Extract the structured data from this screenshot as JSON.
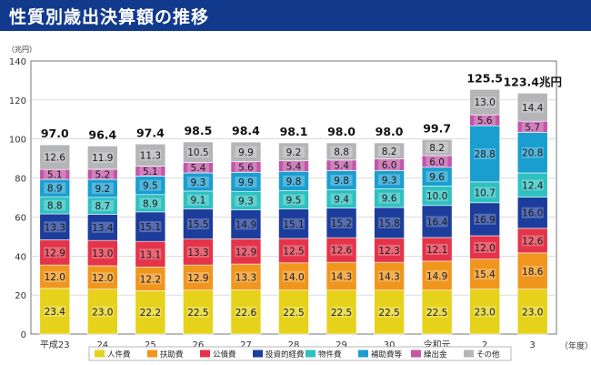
{
  "header": {
    "title": "性質別歳出決算額の推移"
  },
  "chart_data": {
    "type": "bar",
    "stacked": true,
    "title": "性質別歳出決算額の推移",
    "ylabel": "（兆円）",
    "xlabel": "（年度）",
    "ylim": [
      0,
      140
    ],
    "yticks": [
      0,
      20,
      40,
      60,
      80,
      100,
      120,
      140
    ],
    "categories": [
      "平成23",
      "24",
      "25",
      "26",
      "27",
      "28",
      "29",
      "30",
      "令和元",
      "2",
      "3"
    ],
    "series": [
      {
        "name": "人件費",
        "color": "#e6d21a",
        "values": [
          23.4,
          23.0,
          22.2,
          22.5,
          22.6,
          22.5,
          22.5,
          22.5,
          22.5,
          23.0,
          23.0
        ]
      },
      {
        "name": "扶助費",
        "color": "#f0961e",
        "values": [
          12.0,
          12.0,
          12.2,
          12.9,
          13.3,
          14.0,
          14.3,
          14.3,
          14.9,
          15.4,
          18.6
        ]
      },
      {
        "name": "公債費",
        "color": "#e5344a",
        "values": [
          12.9,
          13.0,
          13.1,
          13.3,
          12.9,
          12.5,
          12.6,
          12.3,
          12.1,
          12.0,
          12.6
        ]
      },
      {
        "name": "投資的経費",
        "color": "#1d3d9c",
        "values": [
          13.3,
          13.4,
          15.1,
          15.5,
          14.9,
          15.1,
          15.2,
          15.8,
          16.4,
          16.9,
          16.0
        ]
      },
      {
        "name": "物件費",
        "color": "#2ec1c0",
        "values": [
          8.8,
          8.7,
          8.9,
          9.1,
          9.3,
          9.5,
          9.4,
          9.6,
          10.0,
          10.7,
          12.4
        ]
      },
      {
        "name": "補助費等",
        "color": "#1a9ed0",
        "values": [
          8.9,
          9.2,
          9.5,
          9.3,
          9.9,
          9.8,
          9.8,
          9.3,
          9.6,
          28.8,
          20.8
        ]
      },
      {
        "name": "繰出金",
        "color": "#c256a8",
        "values": [
          5.1,
          5.2,
          5.1,
          5.4,
          5.6,
          5.4,
          5.4,
          6.0,
          6.0,
          5.6,
          5.7
        ]
      },
      {
        "name": "その他",
        "color": "#b4b5b7",
        "values": [
          12.6,
          11.9,
          11.3,
          10.5,
          9.9,
          9.2,
          8.8,
          8.2,
          8.2,
          13.0,
          14.4
        ]
      }
    ],
    "totals": [
      "97.0",
      "96.4",
      "97.4",
      "98.5",
      "98.4",
      "98.1",
      "98.0",
      "98.0",
      "99.7",
      "125.5",
      "123.4兆円"
    ],
    "legend_position": "bottom"
  }
}
